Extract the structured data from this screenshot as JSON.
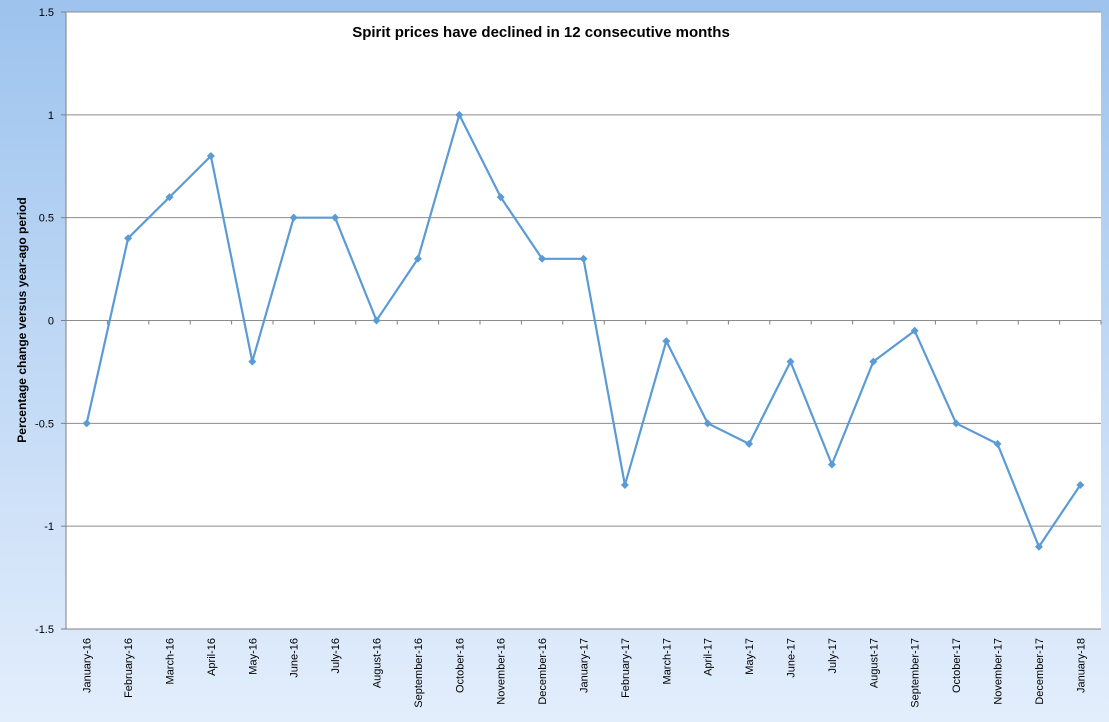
{
  "chart_data": {
    "type": "line",
    "title": "Spirit prices have declined in 12 consecutive months",
    "xlabel": "",
    "ylabel": "Percentage change versus year-ago period",
    "ylim": [
      -1.5,
      1.5
    ],
    "yticks": [
      -1.5,
      -1,
      -0.5,
      0,
      0.5,
      1,
      1.5
    ],
    "ytick_labels": [
      "-1.5",
      "-1",
      "-0.5",
      "0",
      "0.5",
      "1",
      "1.5"
    ],
    "grid": true,
    "legend": "none",
    "line_color": "#5b9bd5",
    "categories": [
      "January-16",
      "February-16",
      "March-16",
      "April-16",
      "May-16",
      "June-16",
      "July-16",
      "August-16",
      "September-16",
      "October-16",
      "November-16",
      "December-16",
      "January-17",
      "February-17",
      "March-17",
      "April-17",
      "May-17",
      "June-17",
      "July-17",
      "August-17",
      "September-17",
      "October-17",
      "November-17",
      "December-17",
      "January-18"
    ],
    "values": [
      -0.5,
      0.4,
      0.6,
      0.8,
      -0.2,
      0.5,
      0.5,
      0.0,
      0.3,
      1.0,
      0.6,
      0.3,
      0.3,
      -0.8,
      -0.1,
      -0.5,
      -0.6,
      -0.2,
      -0.7,
      -0.2,
      -0.05,
      -0.5,
      -0.6,
      -1.1,
      -0.8
    ]
  }
}
